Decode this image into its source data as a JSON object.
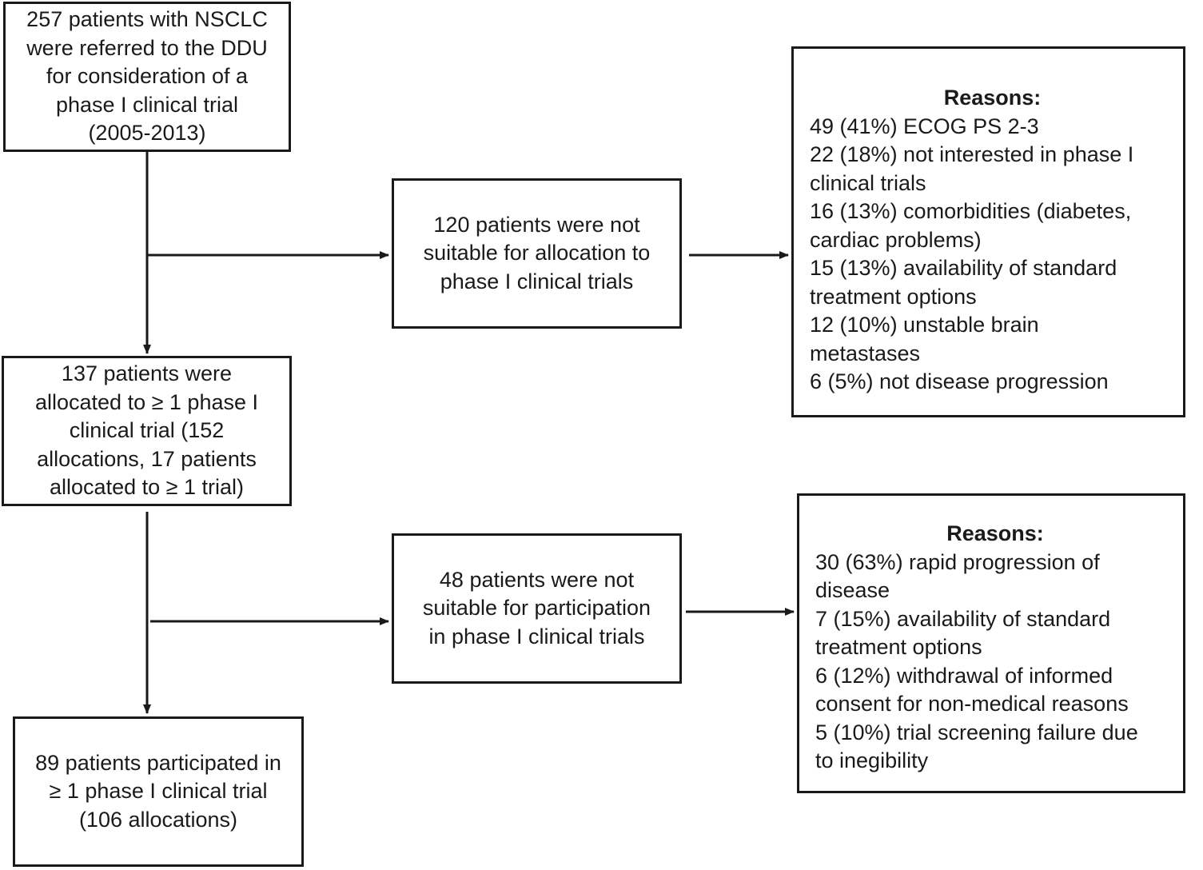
{
  "boxes": {
    "referred": {
      "lines": [
        "257 patients with NSCLC",
        "were referred to the DDU",
        "for consideration of a",
        "phase I clinical trial",
        "(2005-2013)"
      ]
    },
    "not_suitable_allocation": {
      "lines": [
        "120 patients were not",
        "suitable for allocation to",
        "phase I clinical trials"
      ]
    },
    "reasons_allocation": {
      "heading": "Reasons:",
      "lines": [
        "49 (41%) ECOG PS 2-3",
        "22 (18%) not interested in phase I",
        "clinical trials",
        "16 (13%) comorbidities (diabetes,",
        "cardiac problems)",
        "15 (13%) availability of standard",
        "treatment options",
        "12 (10%) unstable brain",
        "metastases",
        "6 (5%) not disease progression"
      ]
    },
    "allocated": {
      "lines": [
        "137 patients were",
        "allocated to ≥ 1 phase I",
        "clinical trial (152",
        "allocations, 17 patients",
        "allocated to ≥ 1 trial)"
      ]
    },
    "not_suitable_participation": {
      "lines": [
        "48 patients were not",
        "suitable for participation",
        "in phase I clinical trials"
      ]
    },
    "reasons_participation": {
      "heading": "Reasons:",
      "lines": [
        "30 (63%) rapid progression of",
        "disease",
        "7 (15%)  availability of standard",
        "treatment options",
        "6 (12%) withdrawal of  informed",
        "consent for non-medical reasons",
        "5 (10%) trial screening failure due",
        "to inegibility"
      ]
    },
    "participated": {
      "lines": [
        "89 patients participated in",
        "≥ 1 phase I clinical trial",
        "(106 allocations)"
      ]
    }
  }
}
